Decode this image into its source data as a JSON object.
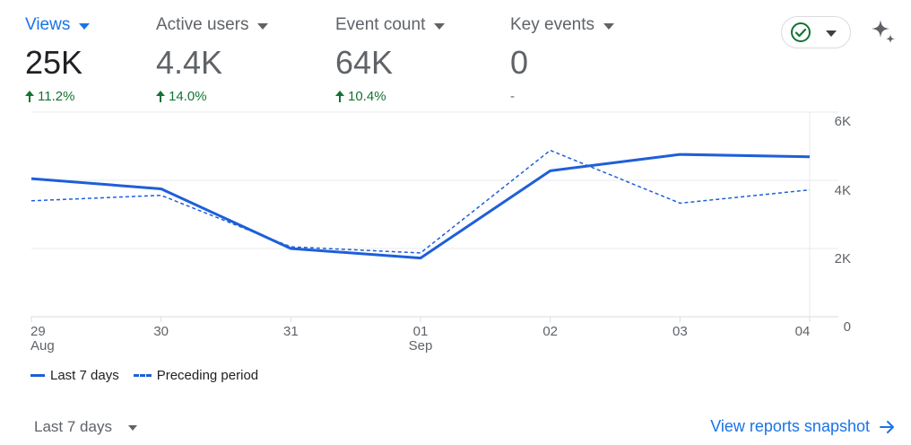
{
  "metrics": [
    {
      "label": "Views",
      "value": "25K",
      "change": "11.2%",
      "direction": "up"
    },
    {
      "label": "Active users",
      "value": "4.4K",
      "change": "14.0%",
      "direction": "up"
    },
    {
      "label": "Event count",
      "value": "64K",
      "change": "10.4%",
      "direction": "up"
    },
    {
      "label": "Key events",
      "value": "0",
      "change": "-",
      "direction": "none"
    }
  ],
  "status_icon": "check-circle-icon",
  "insights_icon": "sparkle-icon",
  "colors": {
    "accent": "#1a73e8",
    "line": "#1e5fd9",
    "positive": "#137333"
  },
  "chart_data": {
    "type": "line",
    "categories": [
      "29",
      "30",
      "31",
      "01",
      "02",
      "03",
      "04"
    ],
    "month_labels": [
      "Aug",
      "",
      "",
      "Sep",
      "",
      "",
      ""
    ],
    "series": [
      {
        "name": "Last 7 days",
        "style": "solid",
        "values": [
          4050,
          3750,
          2000,
          1720,
          4280,
          4760,
          4690
        ]
      },
      {
        "name": "Preceding period",
        "style": "dashed",
        "values": [
          3400,
          3560,
          2050,
          1870,
          4880,
          3330,
          3720
        ]
      }
    ],
    "yticks": [
      "0",
      "2K",
      "4K",
      "6K"
    ],
    "ylim": [
      0,
      6000
    ],
    "grid": true,
    "legend": "bottom-left"
  },
  "footer": {
    "range_label": "Last 7 days",
    "link_label": "View reports snapshot"
  }
}
